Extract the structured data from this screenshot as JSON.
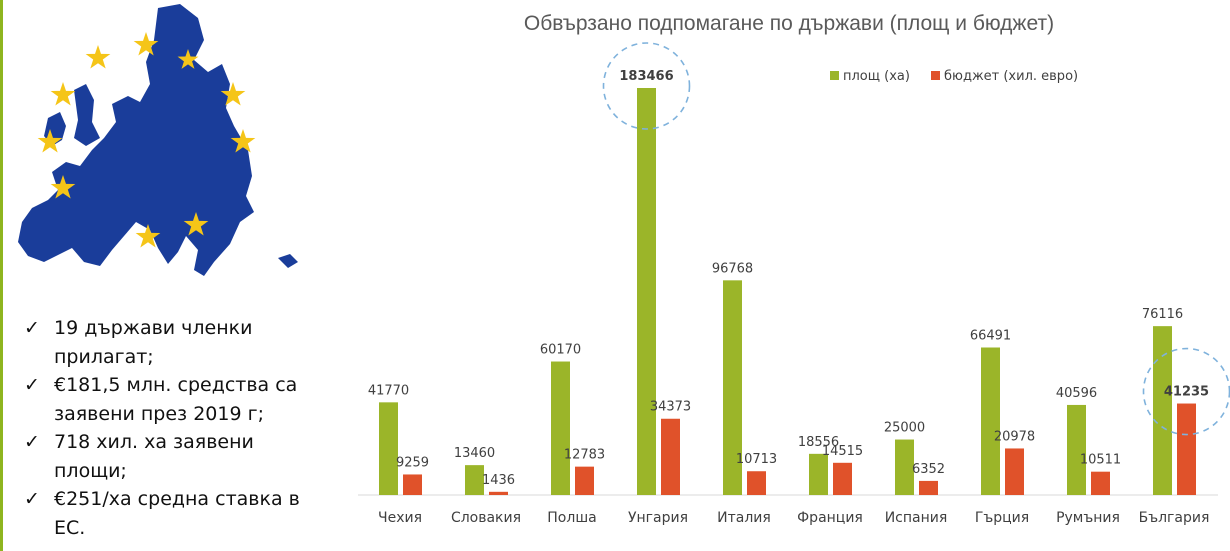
{
  "bullets": [
    "19 държави членки прилагат;",
    "€181,5 млн. средства са заявени през 2019  г;",
    "718 хил. ха заявени площи;",
    "€251/ха средна ставка в ЕС."
  ],
  "colors": {
    "area": "#9bb529",
    "budget": "#e0522a",
    "accent": "#8eb51f",
    "map": "#1a3d9a",
    "stars": "#f5c518",
    "highlight": "#7fb2dc"
  },
  "chart_data": {
    "type": "bar",
    "title": "Обвързано подпомагане по държави (площ и бюджет)",
    "categories": [
      "Чехия",
      "Словакия",
      "Полша",
      "Унгария",
      "Италия",
      "Франция",
      "Испания",
      "Гърция",
      "Румъния",
      "България"
    ],
    "series": [
      {
        "name": "площ (ха)",
        "values": [
          41770,
          13460,
          60170,
          183466,
          96768,
          18556,
          25000,
          66491,
          40596,
          76116
        ]
      },
      {
        "name": "бюджет (хил. евро)",
        "values": [
          9259,
          1436,
          12783,
          34373,
          10713,
          14515,
          6352,
          20978,
          10511,
          41235
        ]
      }
    ],
    "ylim": [
      0,
      183466
    ],
    "grid": false,
    "legend": "top-right",
    "highlighted": [
      {
        "series": 0,
        "category": 3
      },
      {
        "series": 1,
        "category": 9
      }
    ]
  }
}
